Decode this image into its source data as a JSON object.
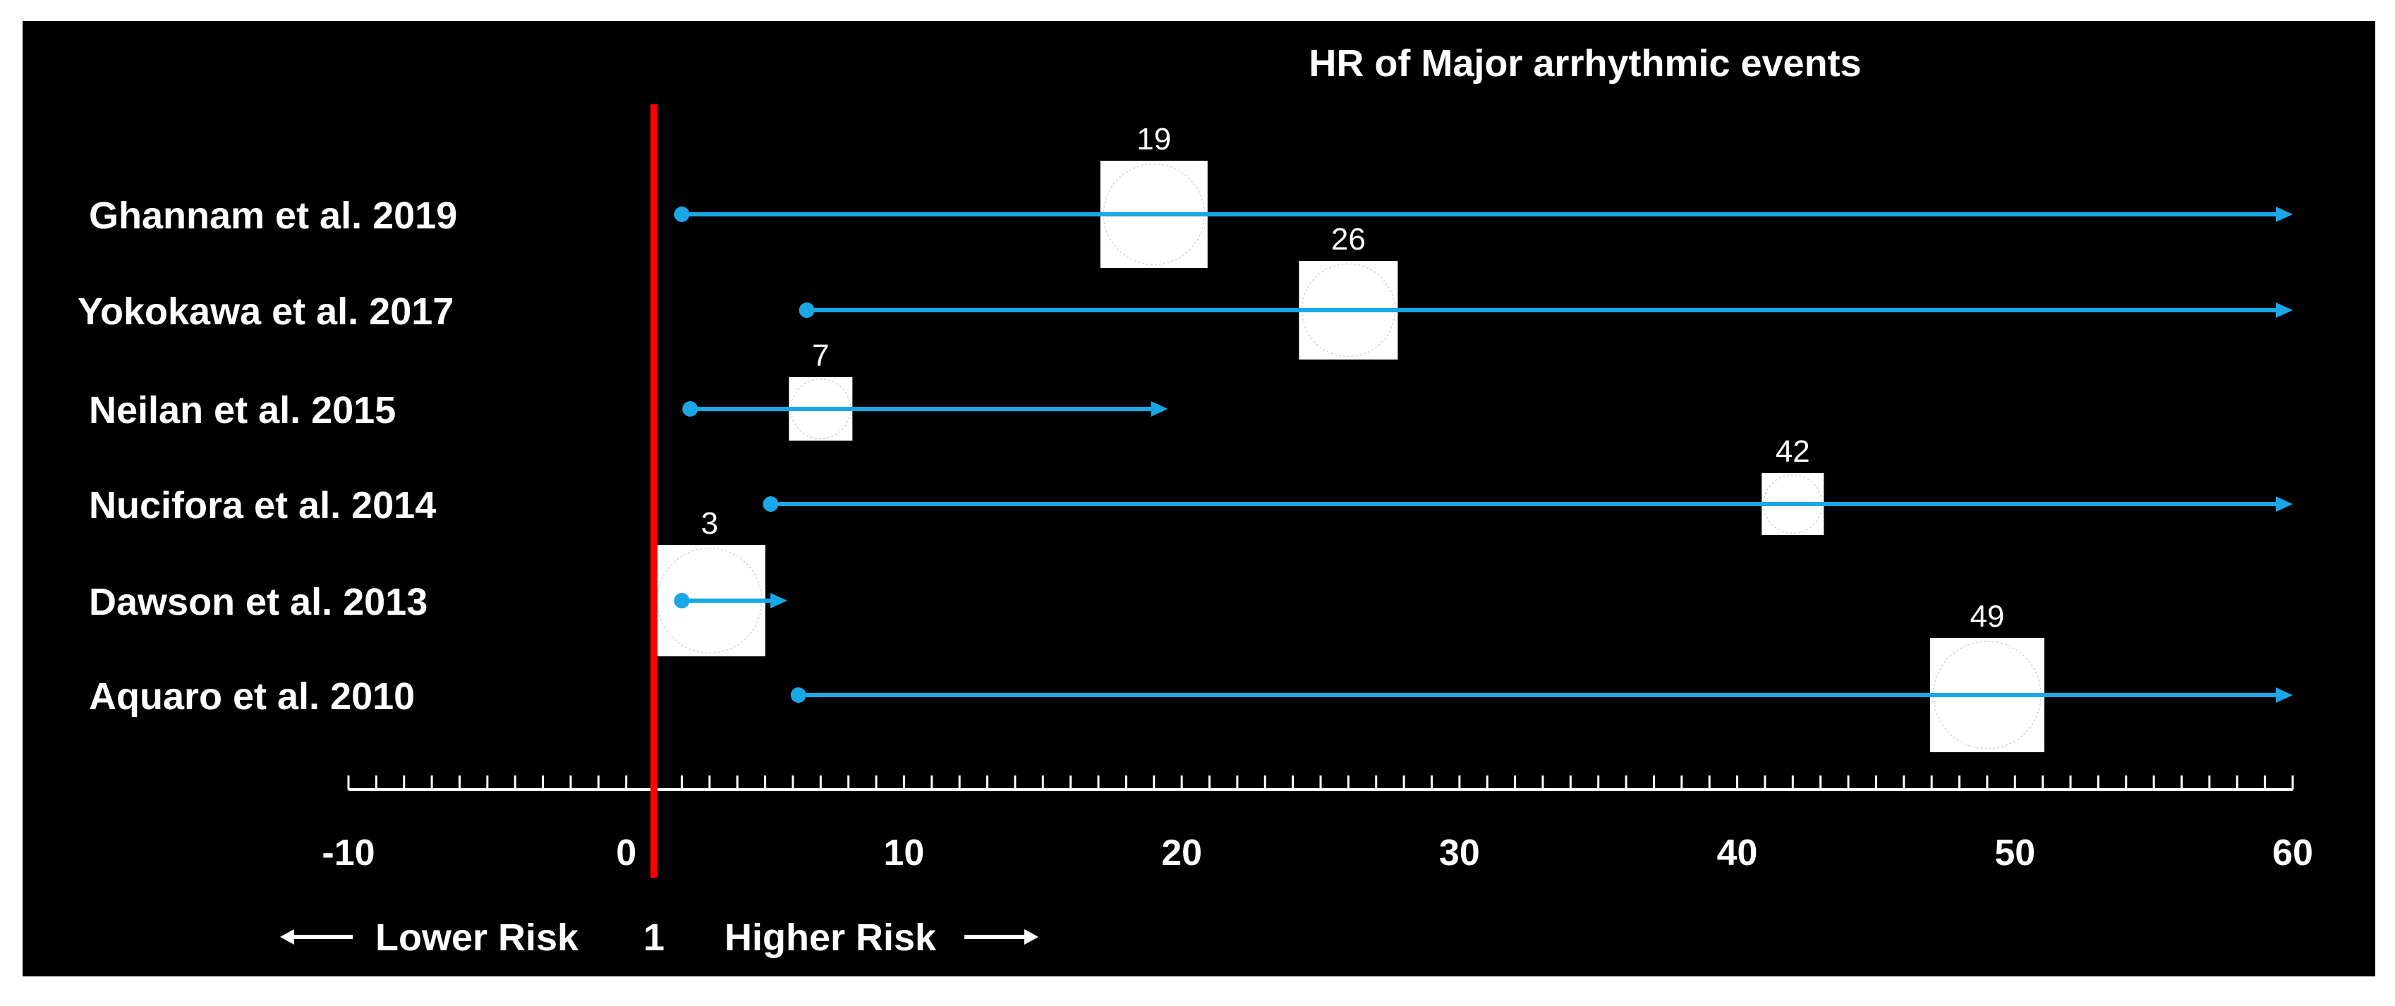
{
  "chart_data": {
    "type": "forest",
    "title": "HR of Major arrhythmic events",
    "x_ticks": [
      -10,
      0,
      10,
      20,
      30,
      40,
      50,
      60
    ],
    "xlim": [
      -10,
      60
    ],
    "reference_line_x": 1,
    "lower_risk_label": "Lower Risk",
    "reference_label": "1",
    "higher_risk_label": "Higher Risk",
    "colors": {
      "background": "#000000",
      "interval": "#1aa7e6",
      "reference": "#ff0000",
      "box": "#ffffff"
    },
    "studies": [
      {
        "name": "Ghannam et al. 2019",
        "hr": 19,
        "label": "19",
        "lower": 2,
        "upper": 60,
        "upper_arrow": true
      },
      {
        "name": "Yokokawa et al. 2017",
        "hr": 26,
        "label": "26",
        "lower": 6.5,
        "upper": 60,
        "upper_arrow": true
      },
      {
        "name": "Neilan et al. 2015",
        "hr": 7,
        "label": "7",
        "lower": 2.3,
        "upper": 19.5,
        "upper_arrow": true
      },
      {
        "name": "Nucifora et al. 2014",
        "hr": 42,
        "label": "42",
        "lower": 5.2,
        "upper": 60,
        "upper_arrow": true
      },
      {
        "name": "Dawson et al. 2013",
        "hr": 3,
        "label": "3",
        "lower": 2,
        "upper": 5.8,
        "upper_arrow": true
      },
      {
        "name": "Aquaro et al. 2010",
        "hr": 49,
        "label": "49",
        "lower": 6.2,
        "upper": 60,
        "upper_arrow": true
      }
    ]
  }
}
